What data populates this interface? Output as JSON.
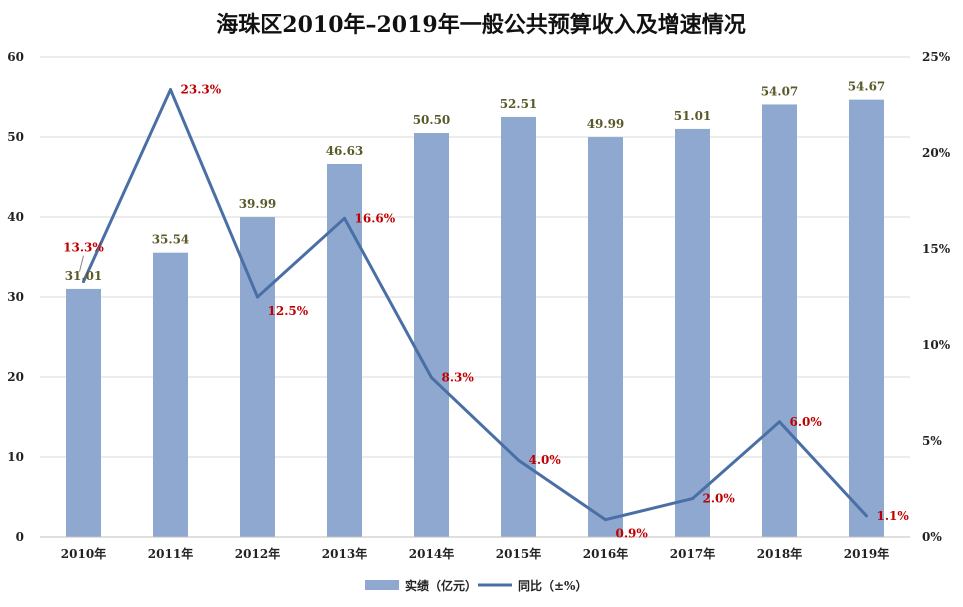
{
  "chart_data": {
    "type": "bar",
    "title": "海珠区2010年–2019年一般公共预算收入及增速情况",
    "categories": [
      "2010年",
      "2011年",
      "2012年",
      "2013年",
      "2014年",
      "2015年",
      "2016年",
      "2017年",
      "2018年",
      "2019年"
    ],
    "series": [
      {
        "name": "实绩（亿元）",
        "type": "bar",
        "axis": "left",
        "color": "#8fa8d0",
        "values": [
          31.01,
          35.54,
          39.99,
          46.63,
          50.5,
          52.51,
          49.99,
          51.01,
          54.07,
          54.67
        ],
        "labels": [
          "31.01",
          "35.54",
          "39.99",
          "46.63",
          "50.50",
          "52.51",
          "49.99",
          "51.01",
          "54.07",
          "54.67"
        ],
        "label_color": "#5a5a2a"
      },
      {
        "name": "同比（±%）",
        "type": "line",
        "axis": "right",
        "color": "#4a6fa5",
        "values": [
          13.3,
          23.3,
          12.5,
          16.6,
          8.3,
          4.0,
          0.9,
          2.0,
          6.0,
          1.1
        ],
        "labels": [
          "13.3%",
          "23.3%",
          "12.5%",
          "16.6%",
          "8.3%",
          "4.0%",
          "0.9%",
          "2.0%",
          "6.0%",
          "1.1%"
        ],
        "label_color": "#c00000"
      }
    ],
    "y_left": {
      "min": 0,
      "max": 60,
      "ticks": [
        "0",
        "10",
        "20",
        "30",
        "40",
        "50",
        "60"
      ]
    },
    "y_right": {
      "min": 0,
      "max": 25,
      "ticks": [
        "0%",
        "5%",
        "10%",
        "15%",
        "20%",
        "25%"
      ]
    },
    "grid": true,
    "legend": "bottom"
  }
}
